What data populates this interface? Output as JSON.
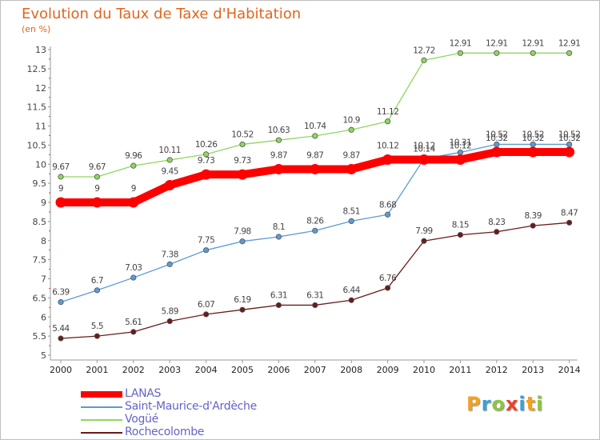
{
  "title": "Evolution du Taux de Taxe d'Habitation",
  "subtitle": "(en %)",
  "logo": [
    "P",
    "r",
    "o",
    "x",
    "i",
    "t",
    "i"
  ],
  "chart_data": {
    "type": "line",
    "title": "Evolution du Taux de Taxe d'Habitation",
    "ylabel": "(en %)",
    "xlabel": "",
    "ylim": [
      5,
      13
    ],
    "yticks": [
      "5",
      "5.5",
      "6",
      "6.5",
      "7",
      "7.5",
      "8",
      "8.5",
      "9",
      "9.5",
      "10",
      "10.5",
      "11",
      "11.5",
      "12",
      "12.5",
      "13"
    ],
    "grid": false,
    "legend_position": "bottom-left",
    "x": [
      "2000",
      "2001",
      "2002",
      "2003",
      "2004",
      "2005",
      "2006",
      "2007",
      "2008",
      "2009",
      "2010",
      "2011",
      "2012",
      "2013",
      "2014"
    ],
    "series": [
      {
        "name": "LANAS",
        "color": "#ff0000",
        "values": [
          9,
          9,
          9,
          9.45,
          9.73,
          9.73,
          9.87,
          9.87,
          9.87,
          10.12,
          10.12,
          10.12,
          10.32,
          10.32,
          10.32
        ],
        "labels": [
          "9",
          "9",
          "9",
          "9.45",
          "9.73",
          "9.73",
          "9.87",
          "9.87",
          "9.87",
          "10.12",
          "10.12",
          "10.12",
          "10.32",
          "10.32",
          "10.32"
        ]
      },
      {
        "name": "Saint-Maurice-d'Ardèche",
        "color": "#5b9bd5",
        "values": [
          6.39,
          6.7,
          7.03,
          7.38,
          7.75,
          7.98,
          8.1,
          8.26,
          8.51,
          8.68,
          10.14,
          10.31,
          10.52,
          10.52,
          10.52
        ],
        "labels": [
          "6.39",
          "6.7",
          "7.03",
          "7.38",
          "7.75",
          "7.98",
          "8.1",
          "8.26",
          "8.51",
          "8.68",
          "10.14",
          "10.31",
          "10.52",
          "10.52",
          "10.52"
        ]
      },
      {
        "name": "Vogüé",
        "color": "#8fd65c",
        "values": [
          9.67,
          9.67,
          9.96,
          10.11,
          10.26,
          10.52,
          10.63,
          10.74,
          10.9,
          11.12,
          12.72,
          12.91,
          12.91,
          12.91,
          12.91
        ],
        "labels": [
          "9.67",
          "9.67",
          "9.96",
          "10.11",
          "10.26",
          "10.52",
          "10.63",
          "10.74",
          "10.9",
          "11.12",
          "12.72",
          "12.91",
          "12.91",
          "12.91",
          "12.91"
        ]
      },
      {
        "name": "Rochecolombe",
        "color": "#6b1a1a",
        "values": [
          5.44,
          5.5,
          5.61,
          5.89,
          6.07,
          6.19,
          6.31,
          6.31,
          6.44,
          6.76,
          7.99,
          8.15,
          8.23,
          8.39,
          8.47
        ],
        "labels": [
          "5.44",
          "5.5",
          "5.61",
          "5.89",
          "6.07",
          "6.19",
          "6.31",
          "6.31",
          "6.44",
          "6.76",
          "7.99",
          "8.15",
          "8.23",
          "8.39",
          "8.47"
        ]
      }
    ]
  }
}
